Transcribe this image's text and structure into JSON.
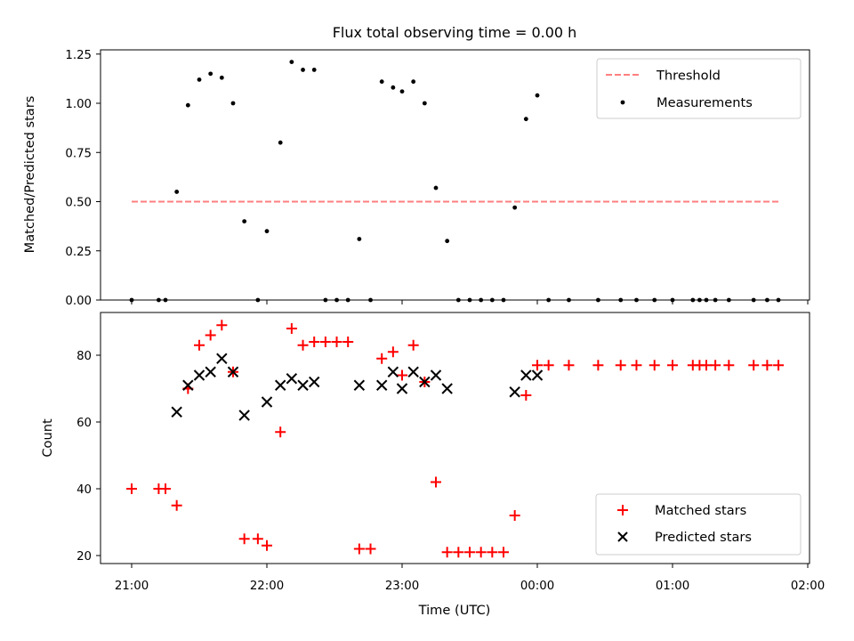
{
  "chart_data": [
    {
      "panel": "top",
      "type": "scatter",
      "title": "Flux total observing time = 0.00 h",
      "ylabel": "Matched/Predicted stars",
      "xlabel": "",
      "ylim": [
        0,
        1.28
      ],
      "yticks": [
        0,
        0.25,
        0.5,
        0.75,
        1.0,
        1.25
      ],
      "ytick_labels": [
        "0.00",
        "0.25",
        "0.50",
        "0.75",
        "1.00",
        "1.25"
      ],
      "legend": {
        "location": "upper right",
        "entries": [
          "Threshold",
          "Measurements"
        ]
      },
      "threshold": {
        "name": "Threshold",
        "y": 0.5,
        "x_start": "21:00",
        "x_end": "01:48",
        "color": "#ff7f7f",
        "style": "dashed"
      },
      "series": [
        {
          "name": "Measurements",
          "color": "#000000",
          "marker": "dot",
          "points": [
            [
              "21:00",
              0.0
            ],
            [
              "21:12",
              0.0
            ],
            [
              "21:15",
              0.0
            ],
            [
              "21:20",
              0.55
            ],
            [
              "21:25",
              0.99
            ],
            [
              "21:30",
              1.12
            ],
            [
              "21:35",
              1.15
            ],
            [
              "21:40",
              1.13
            ],
            [
              "21:45",
              1.0
            ],
            [
              "21:50",
              0.4
            ],
            [
              "21:56",
              0.0
            ],
            [
              "22:00",
              0.35
            ],
            [
              "22:06",
              0.8
            ],
            [
              "22:11",
              1.21
            ],
            [
              "22:16",
              1.17
            ],
            [
              "22:21",
              1.17
            ],
            [
              "22:26",
              0.0
            ],
            [
              "22:31",
              0.0
            ],
            [
              "22:36",
              0.0
            ],
            [
              "22:41",
              0.31
            ],
            [
              "22:46",
              0.0
            ],
            [
              "22:51",
              1.11
            ],
            [
              "22:56",
              1.08
            ],
            [
              "23:00",
              1.06
            ],
            [
              "23:05",
              1.11
            ],
            [
              "23:10",
              1.0
            ],
            [
              "23:15",
              0.57
            ],
            [
              "23:20",
              0.3
            ],
            [
              "23:25",
              0.0
            ],
            [
              "23:30",
              0.0
            ],
            [
              "23:35",
              0.0
            ],
            [
              "23:40",
              0.0
            ],
            [
              "23:45",
              0.0
            ],
            [
              "23:50",
              0.47
            ],
            [
              "23:55",
              0.92
            ],
            [
              "00:00",
              1.04
            ],
            [
              "00:05",
              0.0
            ],
            [
              "00:14",
              0.0
            ],
            [
              "00:27",
              0.0
            ],
            [
              "00:37",
              0.0
            ],
            [
              "00:44",
              0.0
            ],
            [
              "00:52",
              0.0
            ],
            [
              "01:00",
              0.0
            ],
            [
              "01:09",
              0.0
            ],
            [
              "01:12",
              0.0
            ],
            [
              "01:15",
              0.0
            ],
            [
              "01:19",
              0.0
            ],
            [
              "01:25",
              0.0
            ],
            [
              "01:36",
              0.0
            ],
            [
              "01:42",
              0.0
            ],
            [
              "01:47",
              0.0
            ]
          ]
        }
      ]
    },
    {
      "panel": "bottom",
      "type": "scatter",
      "ylabel": "Count",
      "xlabel": "Time (UTC)",
      "ylim": [
        18,
        93
      ],
      "yticks": [
        20,
        40,
        60,
        80
      ],
      "ytick_labels": [
        "20",
        "40",
        "60",
        "80"
      ],
      "xlim": [
        "20:46",
        "02:02"
      ],
      "xticks": [
        "21:00",
        "22:00",
        "23:00",
        "00:00",
        "01:00",
        "02:00"
      ],
      "legend": {
        "location": "lower right",
        "entries": [
          "Matched stars",
          "Predicted stars"
        ]
      },
      "series": [
        {
          "name": "Matched stars",
          "color": "#ff0000",
          "marker": "plus",
          "points": [
            [
              "21:00",
              40
            ],
            [
              "21:12",
              40
            ],
            [
              "21:15",
              40
            ],
            [
              "21:20",
              35
            ],
            [
              "21:25",
              70
            ],
            [
              "21:30",
              83
            ],
            [
              "21:35",
              86
            ],
            [
              "21:40",
              89
            ],
            [
              "21:45",
              75
            ],
            [
              "21:50",
              25
            ],
            [
              "21:56",
              25
            ],
            [
              "22:00",
              23
            ],
            [
              "22:06",
              57
            ],
            [
              "22:11",
              88
            ],
            [
              "22:16",
              83
            ],
            [
              "22:21",
              84
            ],
            [
              "22:26",
              84
            ],
            [
              "22:31",
              84
            ],
            [
              "22:36",
              84
            ],
            [
              "22:41",
              22
            ],
            [
              "22:46",
              22
            ],
            [
              "22:51",
              79
            ],
            [
              "22:56",
              81
            ],
            [
              "23:00",
              74
            ],
            [
              "23:05",
              83
            ],
            [
              "23:10",
              72
            ],
            [
              "23:15",
              42
            ],
            [
              "23:20",
              21
            ],
            [
              "23:25",
              21
            ],
            [
              "23:30",
              21
            ],
            [
              "23:35",
              21
            ],
            [
              "23:40",
              21
            ],
            [
              "23:45",
              21
            ],
            [
              "23:50",
              32
            ],
            [
              "23:55",
              68
            ],
            [
              "00:00",
              77
            ],
            [
              "00:05",
              77
            ],
            [
              "00:14",
              77
            ],
            [
              "00:27",
              77
            ],
            [
              "00:37",
              77
            ],
            [
              "00:44",
              77
            ],
            [
              "00:52",
              77
            ],
            [
              "01:00",
              77
            ],
            [
              "01:09",
              77
            ],
            [
              "01:12",
              77
            ],
            [
              "01:15",
              77
            ],
            [
              "01:19",
              77
            ],
            [
              "01:25",
              77
            ],
            [
              "01:36",
              77
            ],
            [
              "01:42",
              77
            ],
            [
              "01:47",
              77
            ]
          ]
        },
        {
          "name": "Predicted stars",
          "color": "#000000",
          "marker": "cross",
          "points": [
            [
              "21:20",
              63
            ],
            [
              "21:25",
              71
            ],
            [
              "21:30",
              74
            ],
            [
              "21:35",
              75
            ],
            [
              "21:40",
              79
            ],
            [
              "21:45",
              75
            ],
            [
              "21:50",
              62
            ],
            [
              "22:00",
              66
            ],
            [
              "22:06",
              71
            ],
            [
              "22:11",
              73
            ],
            [
              "22:16",
              71
            ],
            [
              "22:21",
              72
            ],
            [
              "22:41",
              71
            ],
            [
              "22:51",
              71
            ],
            [
              "22:56",
              75
            ],
            [
              "23:00",
              70
            ],
            [
              "23:05",
              75
            ],
            [
              "23:10",
              72
            ],
            [
              "23:15",
              74
            ],
            [
              "23:20",
              70
            ],
            [
              "23:50",
              69
            ],
            [
              "23:55",
              74
            ],
            [
              "00:00",
              74
            ]
          ]
        }
      ]
    }
  ]
}
